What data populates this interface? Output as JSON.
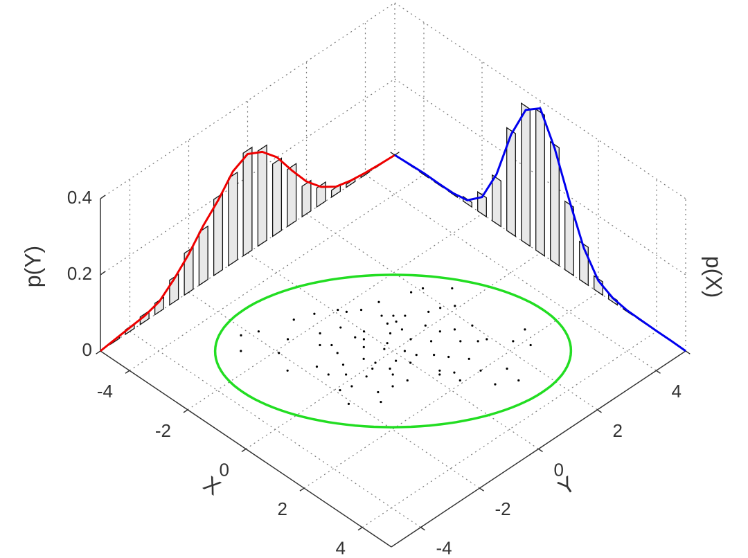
{
  "chart_data": {
    "type": "scatter3d",
    "xlabel": "X",
    "ylabel": "Y",
    "zlabel_x": "p(X)",
    "zlabel_y": "p(Y)",
    "xlim": [
      -5,
      5
    ],
    "ylim": [
      -5,
      5
    ],
    "zlim": [
      0,
      0.4
    ],
    "xticks": [
      -4,
      -2,
      0,
      2,
      4
    ],
    "yticks": [
      -4,
      -2,
      0,
      2,
      4
    ],
    "zticks": [
      0,
      0.2,
      0.4
    ],
    "grid": true,
    "points": {
      "color": "#000000",
      "x": [
        -0.5,
        0.3,
        -1.2,
        1.1,
        -0.8,
        0.2,
        -2.1,
        0.9,
        -0.3,
        1.6,
        -1.5,
        0.6,
        -0.1,
        -0.9,
        1.3,
        -1.8,
        0.4,
        -0.6,
        2.0,
        -1.1,
        0.1,
        -0.4,
        0.8,
        -2.5,
        1.8,
        -0.2,
        0.5,
        -1.4,
        1.0,
        -0.7,
        0.0,
        -1.9,
        0.7,
        -1.0,
        2.4,
        -0.5,
        0.3,
        -2.8,
        1.4,
        -0.9,
        0.2,
        -1.6,
        1.2,
        -0.3,
        -0.8,
        0.6,
        -1.3,
        2.2,
        -0.1,
        0.9,
        -2.3,
        -0.4,
        1.5,
        -1.7,
        0.4,
        -0.6,
        1.9,
        -1.2,
        0.1,
        -3.0,
        0.8,
        -0.2,
        1.1,
        -1.0,
        -2.0,
        0.5,
        -0.7,
        2.6,
        -1.5,
        0.0,
        1.7,
        -0.9,
        -0.3,
        0.6,
        -2.6,
        1.3,
        -1.1,
        0.2,
        -0.5,
        2.9
      ],
      "y": [
        0.4,
        -0.2,
        -0.9,
        0.8,
        0.6,
        -1.1,
        -1.5,
        1.4,
        0.1,
        0.5,
        -0.3,
        -0.6,
        1.2,
        -1.7,
        1.9,
        0.2,
        0.9,
        -0.4,
        1.0,
        0.7,
        -0.8,
        1.6,
        -1.3,
        -0.9,
        2.3,
        -0.1,
        0.3,
        -1.1,
        -0.5,
        1.1,
        0.6,
        -2.0,
        2.0,
        0.0,
        1.5,
        -1.2,
        1.3,
        -1.8,
        0.2,
        0.9,
        -1.6,
        0.5,
        1.7,
        -0.7,
        -0.2,
        0.0,
        -2.3,
        2.5,
        2.2,
        -0.9,
        -0.4,
        0.7,
        1.1,
        -0.8,
        -0.5,
        2.6,
        0.4,
        1.8,
        -1.9,
        -2.2,
        0.6,
        -1.4,
        -1.5,
        -0.3,
        0.1,
        1.6,
        0.8,
        0.9,
        1.0,
        -0.6,
        2.8,
        -1.0,
        1.9,
        -2.1,
        -2.6,
        0.3,
        2.1,
        0.2,
        -1.7,
        1.4
      ]
    },
    "ellipse": {
      "color": "#22dd22",
      "center": [
        0,
        0
      ],
      "semi_axes": [
        4.3,
        2.75
      ],
      "angle": 45
    },
    "marginal_grid": [
      -5,
      -4.5,
      -4,
      -3.5,
      -3,
      -2.5,
      -2,
      -1.5,
      -1,
      -0.5,
      0,
      0.5,
      1,
      1.5,
      2,
      2.5,
      3,
      3.5,
      4,
      4.5,
      5
    ],
    "pY": {
      "color": "#ee0000",
      "values": [
        0,
        0.005,
        0.01,
        0.015,
        0.027,
        0.06,
        0.1,
        0.15,
        0.19,
        0.24,
        0.26,
        0.24,
        0.2,
        0.14,
        0.085,
        0.045,
        0.02,
        0.01,
        0.005,
        0.002,
        0
      ],
      "hist": [
        0,
        0.004,
        0.012,
        0.02,
        0.03,
        0.065,
        0.11,
        0.14,
        0.2,
        0.23,
        0.27,
        0.25,
        0.19,
        0.15,
        0.08,
        0.05,
        0.018,
        0.008,
        0.004,
        0.001,
        0
      ]
    },
    "pX": {
      "color": "#0000ee",
      "values": [
        0,
        0.002,
        0.004,
        0.003,
        0.003,
        0.01,
        0.044,
        0.13,
        0.26,
        0.35,
        0.38,
        0.3,
        0.19,
        0.09,
        0.03,
        0.01,
        0.003,
        0.002,
        0.001,
        0.001,
        0
      ],
      "hist": [
        0,
        0.001,
        0.003,
        0.004,
        0.005,
        0.012,
        0.05,
        0.12,
        0.27,
        0.36,
        0.37,
        0.31,
        0.18,
        0.1,
        0.035,
        0.012,
        0.004,
        0.002,
        0.001,
        0,
        0
      ]
    }
  }
}
